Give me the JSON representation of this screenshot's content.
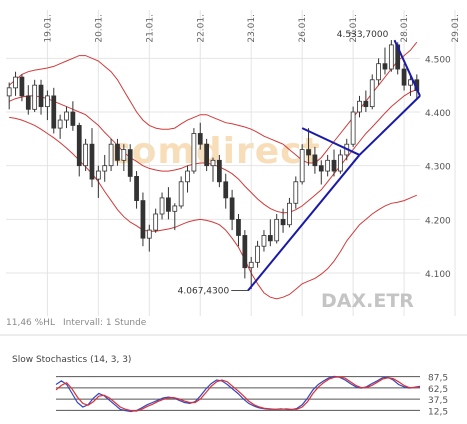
{
  "chart_data": [
    {
      "type": "candlestick",
      "ticker": "DAX.ETR",
      "watermark": "comdirect",
      "x_tick_labels": [
        "19.01.",
        "20.01.",
        "21.01.",
        "22.01.",
        "23.01.",
        "26.01.",
        "27.01.",
        "28.01.",
        "29.01."
      ],
      "y_tick_labels": [
        "4.500",
        "4.400",
        "4.300",
        "4.200",
        "4.100"
      ],
      "ylim": [
        4020,
        4590
      ],
      "footer_left": "11,46 %HL",
      "footer_interval": "Intervall: 1 Stunde",
      "annotations": [
        {
          "text": "4.533,7000",
          "value": 4533.7
        },
        {
          "text": "4.067,4300",
          "value": 4067.43
        }
      ],
      "candles": [
        [
          4430,
          4455,
          4405,
          4445
        ],
        [
          4445,
          4475,
          4430,
          4465
        ],
        [
          4465,
          4470,
          4420,
          4430
        ],
        [
          4430,
          4450,
          4395,
          4405
        ],
        [
          4405,
          4460,
          4400,
          4450
        ],
        [
          4450,
          4460,
          4395,
          4410
        ],
        [
          4410,
          4440,
          4385,
          4430
        ],
        [
          4430,
          4445,
          4360,
          4370
        ],
        [
          4370,
          4395,
          4350,
          4385
        ],
        [
          4385,
          4410,
          4370,
          4400
        ],
        [
          4400,
          4420,
          4365,
          4375
        ],
        [
          4375,
          4380,
          4280,
          4300
        ],
        [
          4300,
          4350,
          4290,
          4340
        ],
        [
          4340,
          4370,
          4260,
          4275
        ],
        [
          4275,
          4300,
          4240,
          4290
        ],
        [
          4290,
          4320,
          4270,
          4300
        ],
        [
          4300,
          4350,
          4290,
          4340
        ],
        [
          4340,
          4350,
          4300,
          4310
        ],
        [
          4310,
          4340,
          4290,
          4330
        ],
        [
          4330,
          4340,
          4270,
          4280
        ],
        [
          4280,
          4290,
          4220,
          4235
        ],
        [
          4235,
          4250,
          4150,
          4165
        ],
        [
          4165,
          4190,
          4140,
          4180
        ],
        [
          4180,
          4220,
          4175,
          4210
        ],
        [
          4210,
          4250,
          4200,
          4240
        ],
        [
          4240,
          4260,
          4200,
          4215
        ],
        [
          4215,
          4230,
          4180,
          4225
        ],
        [
          4225,
          4280,
          4220,
          4270
        ],
        [
          4270,
          4300,
          4250,
          4290
        ],
        [
          4290,
          4370,
          4285,
          4360
        ],
        [
          4360,
          4380,
          4330,
          4340
        ],
        [
          4340,
          4350,
          4290,
          4300
        ],
        [
          4300,
          4315,
          4270,
          4310
        ],
        [
          4310,
          4320,
          4260,
          4270
        ],
        [
          4270,
          4285,
          4220,
          4240
        ],
        [
          4240,
          4255,
          4180,
          4200
        ],
        [
          4200,
          4210,
          4150,
          4170
        ],
        [
          4170,
          4180,
          4090,
          4110
        ],
        [
          4110,
          4130,
          4070,
          4120
        ],
        [
          4120,
          4160,
          4110,
          4150
        ],
        [
          4150,
          4180,
          4140,
          4170
        ],
        [
          4170,
          4200,
          4150,
          4160
        ],
        [
          4160,
          4210,
          4155,
          4200
        ],
        [
          4200,
          4220,
          4175,
          4190
        ],
        [
          4190,
          4240,
          4185,
          4230
        ],
        [
          4230,
          4280,
          4220,
          4270
        ],
        [
          4270,
          4340,
          4265,
          4330
        ],
        [
          4330,
          4370,
          4300,
          4320
        ],
        [
          4320,
          4335,
          4285,
          4300
        ],
        [
          4300,
          4310,
          4265,
          4290
        ],
        [
          4290,
          4320,
          4280,
          4310
        ],
        [
          4310,
          4330,
          4280,
          4290
        ],
        [
          4290,
          4330,
          4285,
          4320
        ],
        [
          4320,
          4350,
          4310,
          4340
        ],
        [
          4340,
          4410,
          4335,
          4400
        ],
        [
          4400,
          4430,
          4390,
          4420
        ],
        [
          4420,
          4440,
          4400,
          4410
        ],
        [
          4410,
          4470,
          4405,
          4460
        ],
        [
          4460,
          4500,
          4450,
          4490
        ],
        [
          4490,
          4520,
          4470,
          4480
        ],
        [
          4480,
          4534,
          4475,
          4525
        ],
        [
          4525,
          4530,
          4470,
          4480
        ],
        [
          4480,
          4490,
          4440,
          4450
        ],
        [
          4450,
          4470,
          4430,
          4460
        ],
        [
          4460,
          4470,
          4425,
          4440
        ]
      ],
      "series": [
        {
          "name": "upper_band",
          "color": "#d23a3a",
          "values": [
            4450,
            4460,
            4470,
            4475,
            4478,
            4480,
            4482,
            4485,
            4490,
            4495,
            4500,
            4505,
            4505,
            4500,
            4495,
            4485,
            4475,
            4460,
            4440,
            4420,
            4400,
            4385,
            4375,
            4370,
            4368,
            4368,
            4370,
            4378,
            4385,
            4390,
            4395,
            4395,
            4390,
            4385,
            4380,
            4378,
            4375,
            4372,
            4368,
            4362,
            4355,
            4350,
            4345,
            4340,
            4330,
            4320,
            4310,
            4305,
            4305,
            4315,
            4330,
            4345,
            4360,
            4375,
            4390,
            4405,
            4420,
            4435,
            4450,
            4465,
            4480,
            4495,
            4505,
            4515,
            4530
          ]
        },
        {
          "name": "middle_band",
          "color": "#d23a3a",
          "values": [
            4420,
            4425,
            4428,
            4430,
            4430,
            4428,
            4425,
            4420,
            4415,
            4410,
            4405,
            4400,
            4395,
            4385,
            4375,
            4362,
            4350,
            4338,
            4325,
            4315,
            4308,
            4300,
            4295,
            4292,
            4290,
            4290,
            4292,
            4295,
            4300,
            4303,
            4305,
            4305,
            4302,
            4298,
            4292,
            4285,
            4275,
            4262,
            4250,
            4238,
            4228,
            4220,
            4215,
            4212,
            4213,
            4218,
            4225,
            4235,
            4245,
            4255,
            4270,
            4285,
            4300,
            4315,
            4330,
            4345,
            4360,
            4372,
            4385,
            4398,
            4410,
            4420,
            4430,
            4437,
            4442
          ]
        },
        {
          "name": "lower_band",
          "color": "#d23a3a",
          "values": [
            4390,
            4388,
            4385,
            4380,
            4375,
            4368,
            4360,
            4352,
            4343,
            4333,
            4322,
            4310,
            4298,
            4285,
            4270,
            4252,
            4235,
            4218,
            4205,
            4195,
            4188,
            4180,
            4178,
            4178,
            4180,
            4182,
            4185,
            4190,
            4195,
            4198,
            4200,
            4198,
            4195,
            4190,
            4180,
            4165,
            4148,
            4125,
            4100,
            4080,
            4063,
            4055,
            4052,
            4055,
            4060,
            4070,
            4080,
            4085,
            4090,
            4098,
            4108,
            4122,
            4140,
            4160,
            4175,
            4190,
            4200,
            4210,
            4218,
            4225,
            4230,
            4232,
            4235,
            4240,
            4245
          ]
        }
      ],
      "trendlines": [
        {
          "from": [
            37.5,
            4067.43
          ],
          "to": [
            55,
            4320
          ]
        },
        {
          "from": [
            55,
            4320
          ],
          "to": [
            64.5,
            4430
          ]
        },
        {
          "from": [
            46,
            4370
          ],
          "to": [
            55,
            4320
          ]
        },
        {
          "from": [
            60.5,
            4533.7
          ],
          "to": [
            64.5,
            4430
          ]
        }
      ]
    },
    {
      "type": "line",
      "title": "Slow Stochastics (14, 3, 3)",
      "y_tick_labels": [
        "87,5",
        "62,5",
        "37,5",
        "12,5"
      ],
      "ylim": [
        0,
        100
      ],
      "reference_lines": [
        87.5,
        62.5,
        37.5,
        12.5
      ],
      "series": [
        {
          "name": "k",
          "color": "#3048c8",
          "values": [
            70,
            78,
            70,
            50,
            30,
            20,
            25,
            40,
            50,
            45,
            35,
            25,
            15,
            12,
            10,
            12,
            18,
            25,
            30,
            35,
            40,
            42,
            40,
            35,
            30,
            28,
            32,
            45,
            60,
            72,
            80,
            78,
            70,
            60,
            50,
            38,
            28,
            22,
            18,
            16,
            15,
            15,
            16,
            15,
            14,
            17,
            25,
            40,
            58,
            70,
            78,
            85,
            88,
            86,
            80,
            72,
            65,
            62,
            65,
            72,
            78,
            85,
            86,
            80,
            70,
            65,
            62,
            64,
            66
          ]
        },
        {
          "name": "d",
          "color": "#e03030",
          "values": [
            58,
            68,
            74,
            60,
            42,
            28,
            24,
            32,
            44,
            46,
            40,
            30,
            20,
            15,
            12,
            11,
            15,
            21,
            26,
            32,
            37,
            40,
            41,
            38,
            33,
            30,
            30,
            38,
            52,
            66,
            76,
            80,
            76,
            66,
            56,
            45,
            33,
            25,
            20,
            17,
            16,
            15,
            15,
            16,
            15,
            15,
            20,
            32,
            50,
            64,
            74,
            82,
            86,
            87,
            84,
            76,
            68,
            63,
            63,
            68,
            75,
            82,
            85,
            83,
            76,
            68,
            63,
            63,
            64
          ]
        }
      ]
    }
  ]
}
